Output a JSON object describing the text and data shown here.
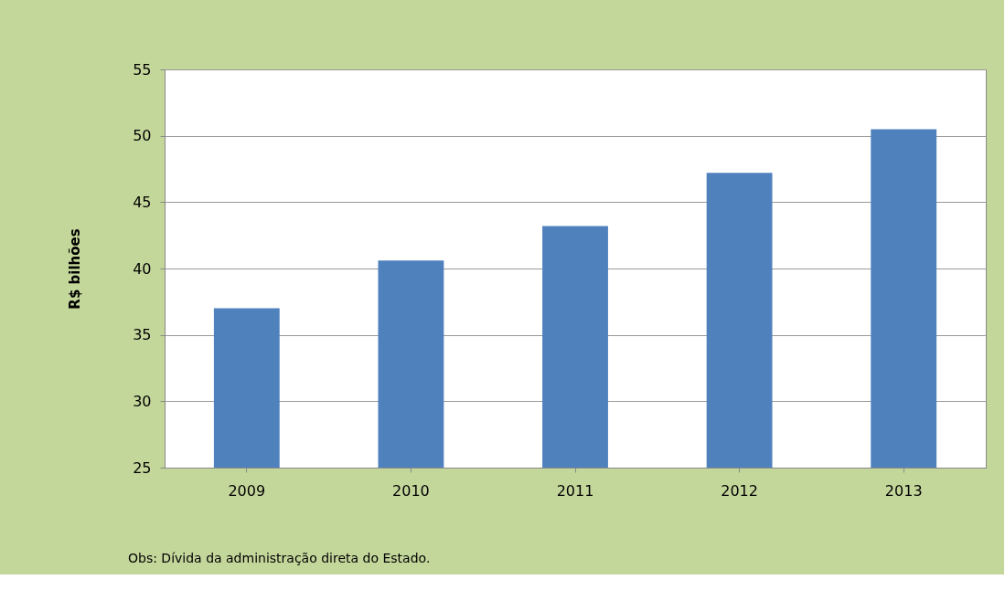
{
  "chart_data": {
    "type": "bar",
    "ylabel": "R$ bilhões",
    "categories": [
      "2009",
      "2010",
      "2011",
      "2012",
      "2013"
    ],
    "series": [
      {
        "color": "#4f81bd",
        "values": [
          37.0,
          40.6,
          43.2,
          47.2,
          50.5
        ]
      }
    ],
    "ylim": [
      25,
      55
    ],
    "yticks": [
      25,
      30,
      35,
      40,
      45,
      50,
      55
    ],
    "grid": "y",
    "annotations": [
      "Obs: Dívida da administração direta do Estado."
    ]
  }
}
